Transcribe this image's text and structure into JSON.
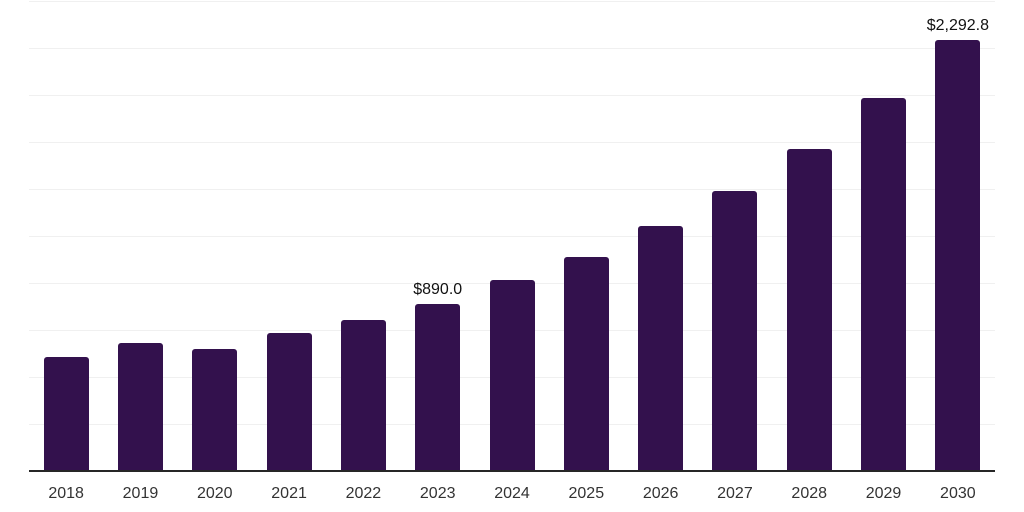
{
  "chart_data": {
    "type": "bar",
    "title": "",
    "xlabel": "",
    "ylabel": "",
    "categories": [
      "2018",
      "2019",
      "2020",
      "2021",
      "2022",
      "2023",
      "2024",
      "2025",
      "2026",
      "2027",
      "2028",
      "2029",
      "2030"
    ],
    "values": [
      604,
      683,
      651,
      736,
      803,
      890,
      1014,
      1141,
      1304,
      1492,
      1715,
      1984,
      2292.8
    ],
    "data_labels": [
      null,
      null,
      null,
      null,
      null,
      "$890.0",
      null,
      null,
      null,
      null,
      null,
      null,
      "$2,292.8"
    ],
    "ylim": [
      0,
      2500
    ],
    "gridline_step": 250,
    "grid": "horizontal",
    "legend_position": "none",
    "colors": {
      "bar": "#33114d",
      "gridline": "#f0f0f0",
      "axis_line": "#262626",
      "tick_label": "#333333",
      "data_label": "#111111",
      "background": "#ffffff"
    }
  }
}
